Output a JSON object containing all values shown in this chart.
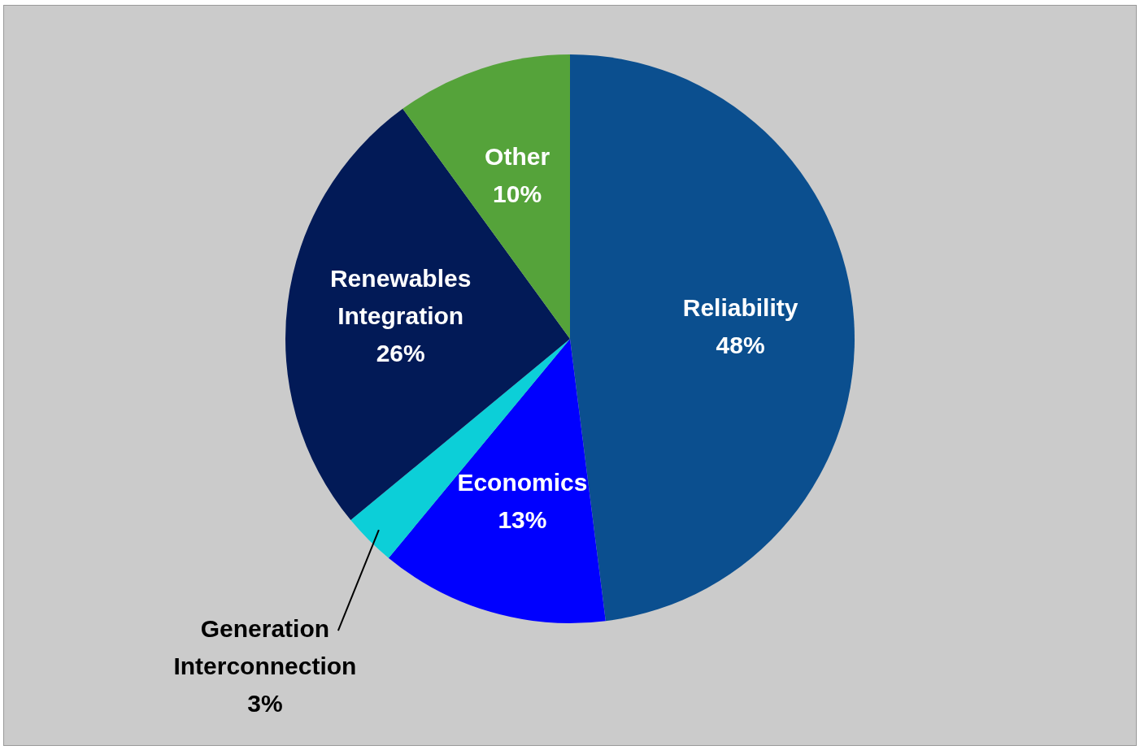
{
  "chart_data": {
    "type": "pie",
    "categories": [
      "Reliability",
      "Economics",
      "Generation Interconnection",
      "Renewables Integration",
      "Other"
    ],
    "values": [
      48,
      13,
      3,
      26,
      10
    ],
    "colors": [
      "#0b4f8f",
      "#0000ff",
      "#0ccfd8",
      "#021a57",
      "#55a33a"
    ],
    "value_labels": [
      "48%",
      "13%",
      "3%",
      "26%",
      "10%"
    ],
    "legend": false
  }
}
